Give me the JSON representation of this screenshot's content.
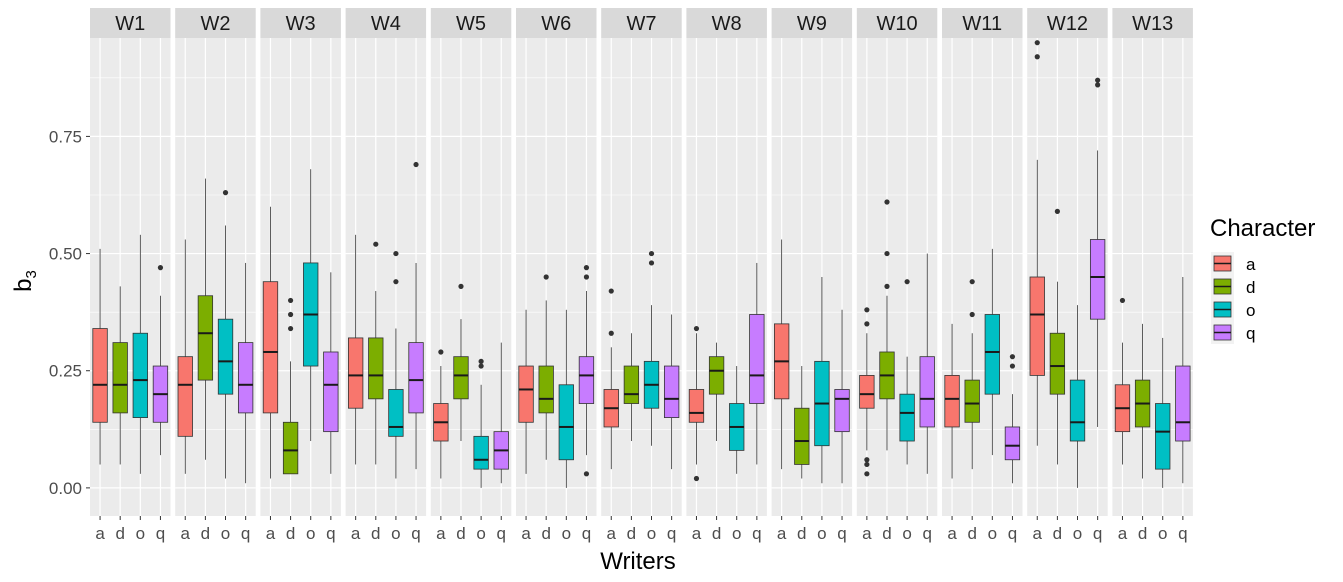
{
  "chart_data": {
    "type": "boxplot",
    "xlabel": "Writers",
    "ylabel_base": "b",
    "ylabel_sub": "3",
    "ylim": [
      -0.06,
      0.96
    ],
    "yticks": [
      0.0,
      0.25,
      0.5,
      0.75
    ],
    "ytick_labels": [
      "0.00",
      "0.25",
      "0.50",
      "0.75"
    ],
    "categories": [
      "a",
      "d",
      "o",
      "q"
    ],
    "legend": {
      "title": "Character",
      "items": [
        {
          "key": "a",
          "label": "a",
          "color": "#F8766D"
        },
        {
          "key": "d",
          "label": "d",
          "color": "#7CAE00"
        },
        {
          "key": "o",
          "label": "o",
          "color": "#00BFC4"
        },
        {
          "key": "q",
          "label": "q",
          "color": "#C77CFF"
        }
      ]
    },
    "panels": [
      {
        "writer": "W1",
        "boxes": [
          {
            "cat": "a",
            "lw": 0.05,
            "q1": 0.14,
            "med": 0.22,
            "q3": 0.34,
            "uw": 0.51,
            "out": []
          },
          {
            "cat": "d",
            "lw": 0.05,
            "q1": 0.16,
            "med": 0.22,
            "q3": 0.31,
            "uw": 0.43,
            "out": []
          },
          {
            "cat": "o",
            "lw": 0.03,
            "q1": 0.15,
            "med": 0.23,
            "q3": 0.33,
            "uw": 0.54,
            "out": []
          },
          {
            "cat": "q",
            "lw": 0.07,
            "q1": 0.14,
            "med": 0.2,
            "q3": 0.26,
            "uw": 0.41,
            "out": [
              0.47
            ]
          }
        ]
      },
      {
        "writer": "W2",
        "boxes": [
          {
            "cat": "a",
            "lw": 0.03,
            "q1": 0.11,
            "med": 0.22,
            "q3": 0.28,
            "uw": 0.53,
            "out": []
          },
          {
            "cat": "d",
            "lw": 0.06,
            "q1": 0.23,
            "med": 0.33,
            "q3": 0.41,
            "uw": 0.66,
            "out": []
          },
          {
            "cat": "o",
            "lw": 0.02,
            "q1": 0.2,
            "med": 0.27,
            "q3": 0.36,
            "uw": 0.56,
            "out": [
              0.63
            ]
          },
          {
            "cat": "q",
            "lw": 0.01,
            "q1": 0.16,
            "med": 0.22,
            "q3": 0.31,
            "uw": 0.48,
            "out": []
          }
        ]
      },
      {
        "writer": "W3",
        "boxes": [
          {
            "cat": "a",
            "lw": 0.02,
            "q1": 0.16,
            "med": 0.29,
            "q3": 0.44,
            "uw": 0.6,
            "out": []
          },
          {
            "cat": "d",
            "lw": 0.03,
            "q1": 0.03,
            "med": 0.08,
            "q3": 0.14,
            "uw": 0.27,
            "out": [
              0.34,
              0.37,
              0.4
            ]
          },
          {
            "cat": "o",
            "lw": 0.1,
            "q1": 0.26,
            "med": 0.37,
            "q3": 0.48,
            "uw": 0.68,
            "out": []
          },
          {
            "cat": "q",
            "lw": 0.03,
            "q1": 0.12,
            "med": 0.22,
            "q3": 0.29,
            "uw": 0.46,
            "out": []
          }
        ]
      },
      {
        "writer": "W4",
        "boxes": [
          {
            "cat": "a",
            "lw": 0.05,
            "q1": 0.17,
            "med": 0.24,
            "q3": 0.32,
            "uw": 0.54,
            "out": []
          },
          {
            "cat": "d",
            "lw": 0.05,
            "q1": 0.19,
            "med": 0.24,
            "q3": 0.32,
            "uw": 0.42,
            "out": [
              0.52
            ]
          },
          {
            "cat": "o",
            "lw": 0.02,
            "q1": 0.11,
            "med": 0.13,
            "q3": 0.21,
            "uw": 0.34,
            "out": [
              0.44,
              0.5
            ]
          },
          {
            "cat": "q",
            "lw": 0.04,
            "q1": 0.16,
            "med": 0.23,
            "q3": 0.31,
            "uw": 0.48,
            "out": [
              0.69
            ]
          }
        ]
      },
      {
        "writer": "W5",
        "boxes": [
          {
            "cat": "a",
            "lw": 0.02,
            "q1": 0.1,
            "med": 0.14,
            "q3": 0.18,
            "uw": 0.26,
            "out": [
              0.29
            ]
          },
          {
            "cat": "d",
            "lw": 0.1,
            "q1": 0.19,
            "med": 0.24,
            "q3": 0.28,
            "uw": 0.36,
            "out": [
              0.43
            ]
          },
          {
            "cat": "o",
            "lw": 0.0,
            "q1": 0.04,
            "med": 0.06,
            "q3": 0.11,
            "uw": 0.22,
            "out": [
              0.26,
              0.27
            ]
          },
          {
            "cat": "q",
            "lw": 0.01,
            "q1": 0.04,
            "med": 0.08,
            "q3": 0.12,
            "uw": 0.31,
            "out": []
          }
        ]
      },
      {
        "writer": "W6",
        "boxes": [
          {
            "cat": "a",
            "lw": 0.03,
            "q1": 0.14,
            "med": 0.21,
            "q3": 0.26,
            "uw": 0.38,
            "out": []
          },
          {
            "cat": "d",
            "lw": 0.06,
            "q1": 0.16,
            "med": 0.19,
            "q3": 0.26,
            "uw": 0.4,
            "out": [
              0.45
            ]
          },
          {
            "cat": "o",
            "lw": 0.0,
            "q1": 0.06,
            "med": 0.13,
            "q3": 0.22,
            "uw": 0.38,
            "out": []
          },
          {
            "cat": "q",
            "lw": 0.07,
            "q1": 0.18,
            "med": 0.24,
            "q3": 0.28,
            "uw": 0.42,
            "out": [
              0.03,
              0.45,
              0.47
            ]
          }
        ]
      },
      {
        "writer": "W7",
        "boxes": [
          {
            "cat": "a",
            "lw": 0.04,
            "q1": 0.13,
            "med": 0.17,
            "q3": 0.21,
            "uw": 0.3,
            "out": [
              0.33,
              0.42
            ]
          },
          {
            "cat": "d",
            "lw": 0.1,
            "q1": 0.18,
            "med": 0.2,
            "q3": 0.26,
            "uw": 0.33,
            "out": []
          },
          {
            "cat": "o",
            "lw": 0.09,
            "q1": 0.17,
            "med": 0.22,
            "q3": 0.27,
            "uw": 0.39,
            "out": [
              0.48,
              0.5
            ]
          },
          {
            "cat": "q",
            "lw": 0.04,
            "q1": 0.15,
            "med": 0.19,
            "q3": 0.26,
            "uw": 0.37,
            "out": []
          }
        ]
      },
      {
        "writer": "W8",
        "boxes": [
          {
            "cat": "a",
            "lw": 0.05,
            "q1": 0.14,
            "med": 0.16,
            "q3": 0.21,
            "uw": 0.33,
            "out": [
              0.02,
              0.34
            ]
          },
          {
            "cat": "d",
            "lw": 0.1,
            "q1": 0.2,
            "med": 0.25,
            "q3": 0.28,
            "uw": 0.31,
            "out": []
          },
          {
            "cat": "o",
            "lw": 0.03,
            "q1": 0.08,
            "med": 0.13,
            "q3": 0.18,
            "uw": 0.26,
            "out": []
          },
          {
            "cat": "q",
            "lw": 0.05,
            "q1": 0.18,
            "med": 0.24,
            "q3": 0.37,
            "uw": 0.48,
            "out": []
          }
        ]
      },
      {
        "writer": "W9",
        "boxes": [
          {
            "cat": "a",
            "lw": 0.04,
            "q1": 0.19,
            "med": 0.27,
            "q3": 0.35,
            "uw": 0.53,
            "out": []
          },
          {
            "cat": "d",
            "lw": 0.02,
            "q1": 0.05,
            "med": 0.1,
            "q3": 0.17,
            "uw": 0.26,
            "out": []
          },
          {
            "cat": "o",
            "lw": 0.01,
            "q1": 0.09,
            "med": 0.18,
            "q3": 0.27,
            "uw": 0.45,
            "out": []
          },
          {
            "cat": "q",
            "lw": 0.01,
            "q1": 0.12,
            "med": 0.19,
            "q3": 0.21,
            "uw": 0.38,
            "out": []
          }
        ]
      },
      {
        "writer": "W10",
        "boxes": [
          {
            "cat": "a",
            "lw": 0.08,
            "q1": 0.17,
            "med": 0.2,
            "q3": 0.24,
            "uw": 0.33,
            "out": [
              0.03,
              0.05,
              0.06,
              0.35,
              0.38
            ]
          },
          {
            "cat": "d",
            "lw": 0.08,
            "q1": 0.19,
            "med": 0.24,
            "q3": 0.29,
            "uw": 0.41,
            "out": [
              0.43,
              0.5,
              0.61
            ]
          },
          {
            "cat": "o",
            "lw": 0.05,
            "q1": 0.1,
            "med": 0.16,
            "q3": 0.2,
            "uw": 0.28,
            "out": [
              0.44
            ]
          },
          {
            "cat": "q",
            "lw": 0.03,
            "q1": 0.13,
            "med": 0.19,
            "q3": 0.28,
            "uw": 0.5,
            "out": []
          }
        ]
      },
      {
        "writer": "W11",
        "boxes": [
          {
            "cat": "a",
            "lw": 0.02,
            "q1": 0.13,
            "med": 0.19,
            "q3": 0.24,
            "uw": 0.35,
            "out": []
          },
          {
            "cat": "d",
            "lw": 0.04,
            "q1": 0.14,
            "med": 0.18,
            "q3": 0.23,
            "uw": 0.33,
            "out": [
              0.37,
              0.44
            ]
          },
          {
            "cat": "o",
            "lw": 0.07,
            "q1": 0.2,
            "med": 0.29,
            "q3": 0.37,
            "uw": 0.51,
            "out": []
          },
          {
            "cat": "q",
            "lw": 0.01,
            "q1": 0.06,
            "med": 0.09,
            "q3": 0.13,
            "uw": 0.2,
            "out": [
              0.26,
              0.28
            ]
          }
        ]
      },
      {
        "writer": "W12",
        "boxes": [
          {
            "cat": "a",
            "lw": 0.09,
            "q1": 0.24,
            "med": 0.37,
            "q3": 0.45,
            "uw": 0.7,
            "out": [
              0.92,
              0.95
            ]
          },
          {
            "cat": "d",
            "lw": 0.05,
            "q1": 0.2,
            "med": 0.26,
            "q3": 0.33,
            "uw": 0.44,
            "out": [
              0.59
            ]
          },
          {
            "cat": "o",
            "lw": 0.0,
            "q1": 0.1,
            "med": 0.14,
            "q3": 0.23,
            "uw": 0.39,
            "out": []
          },
          {
            "cat": "q",
            "lw": 0.13,
            "q1": 0.36,
            "med": 0.45,
            "q3": 0.53,
            "uw": 0.72,
            "out": [
              0.86,
              0.87
            ]
          }
        ]
      },
      {
        "writer": "W13",
        "boxes": [
          {
            "cat": "a",
            "lw": 0.05,
            "q1": 0.12,
            "med": 0.17,
            "q3": 0.22,
            "uw": 0.31,
            "out": [
              0.4
            ]
          },
          {
            "cat": "d",
            "lw": 0.02,
            "q1": 0.13,
            "med": 0.18,
            "q3": 0.23,
            "uw": 0.35,
            "out": []
          },
          {
            "cat": "o",
            "lw": 0.0,
            "q1": 0.04,
            "med": 0.12,
            "q3": 0.18,
            "uw": 0.32,
            "out": []
          },
          {
            "cat": "q",
            "lw": 0.01,
            "q1": 0.1,
            "med": 0.14,
            "q3": 0.26,
            "uw": 0.45,
            "out": []
          }
        ]
      }
    ]
  }
}
